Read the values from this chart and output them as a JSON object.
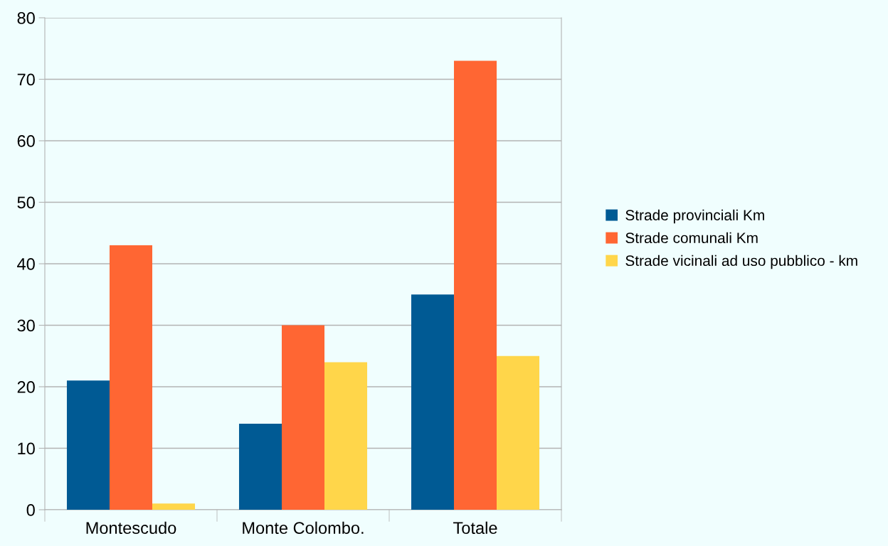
{
  "chart_data": {
    "type": "bar",
    "categories": [
      "Montescudo",
      "Monte Colombo.",
      "Totale"
    ],
    "series": [
      {
        "name": "Strade provinciali Km",
        "color": "#005a94",
        "values": [
          21,
          14,
          35
        ]
      },
      {
        "name": "Strade comunali Km",
        "color": "#ff6633",
        "values": [
          43,
          30,
          73
        ]
      },
      {
        "name": "Strade vicinali ad uso pubblico - km",
        "color": "#ffd64a",
        "values": [
          1,
          24,
          25
        ]
      }
    ],
    "ylim": [
      0,
      80
    ],
    "yticks": [
      0,
      10,
      20,
      30,
      40,
      50,
      60,
      70,
      80
    ],
    "grid": "y",
    "legend": "right"
  }
}
